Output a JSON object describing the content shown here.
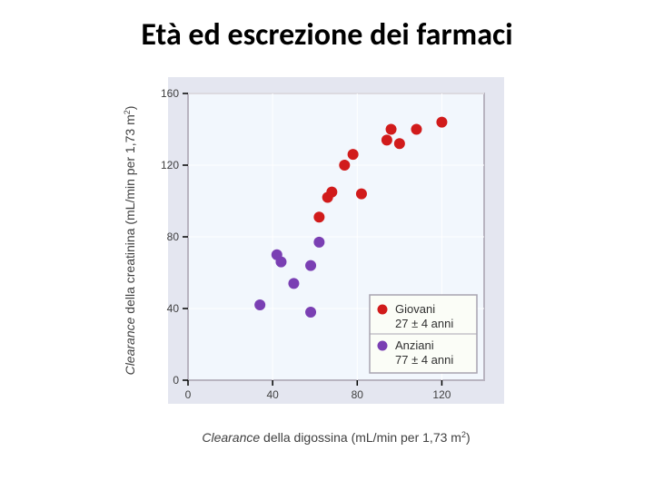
{
  "title": "Età ed escrezione dei farmaci",
  "chart": {
    "type": "scatter",
    "background_color": "#e4e6f0",
    "plot_background": "#f2f7fd",
    "plot_border_color": "#b8b4c0",
    "plot_border_width": 2,
    "grid_color": "#ffffff",
    "grid_width": 1,
    "axis_tick_color": "#000000",
    "axis_label_color": "#404040",
    "axis_label_font": "italic 13px Arial",
    "axis_title_font": "italic 14px Arial",
    "tick_label_font": "12px Arial",
    "x": {
      "label_prefix_italic": "Clearance",
      "label_rest": " della digossina (mL/min per 1,73 m",
      "label_sup": "2",
      "label_suffix": ")",
      "lim": [
        0,
        140
      ],
      "ticks": [
        0,
        40,
        80,
        120
      ]
    },
    "y": {
      "label_prefix_italic": "Clearance",
      "label_rest": " della creatinina (mL/min per 1,73 m",
      "label_sup": "2",
      "label_suffix": ")",
      "lim": [
        0,
        160
      ],
      "ticks": [
        0,
        40,
        80,
        120,
        160
      ]
    },
    "marker_radius": 6,
    "series": [
      {
        "id": "giovani",
        "color": "#d11b1b",
        "points": [
          [
            62,
            91
          ],
          [
            66,
            102
          ],
          [
            68,
            105
          ],
          [
            82,
            104
          ],
          [
            74,
            120
          ],
          [
            78,
            126
          ],
          [
            94,
            134
          ],
          [
            96,
            140
          ],
          [
            100,
            132
          ],
          [
            108,
            140
          ],
          [
            120,
            144
          ]
        ]
      },
      {
        "id": "anziani",
        "color": "#7a3fb3",
        "points": [
          [
            34,
            42
          ],
          [
            50,
            54
          ],
          [
            44,
            66
          ],
          [
            42,
            70
          ],
          [
            58,
            38
          ],
          [
            58,
            64
          ],
          [
            62,
            77
          ]
        ]
      }
    ],
    "legend": {
      "background": "#fbfdf7",
      "border_color": "#a8a4b0",
      "border_width": 1.5,
      "entries": [
        {
          "series": "giovani",
          "line1": "Giovani",
          "line2": "27 ± 4 anni"
        },
        {
          "series": "anziani",
          "line1": "Anziani",
          "line2": "77 ± 4 anni"
        }
      ],
      "legend_font": "13px Arial"
    }
  }
}
